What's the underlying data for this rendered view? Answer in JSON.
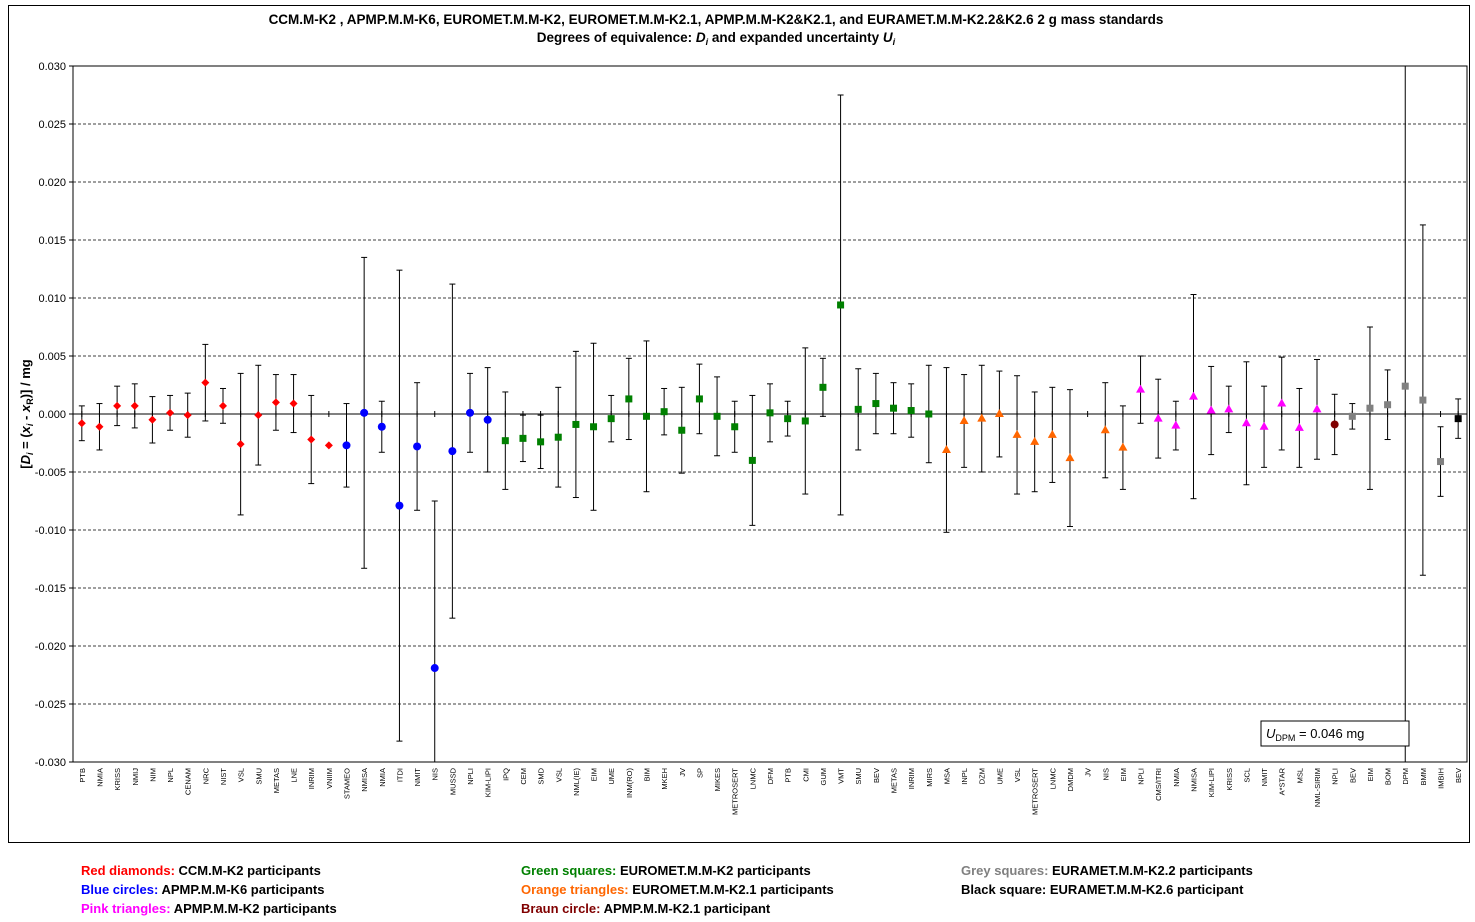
{
  "chart_data": {
    "type": "scatter",
    "title": "CCM.M-K2 , APMP.M.M-K6, EUROMET.M.M-K2, EUROMET.M.M-K2.1, APMP.M.M-K2&K2.1, and EURAMET.M.M-K2.2&K2.6   2 g mass standards",
    "subtitle_prefix": "Degrees of equivalence: ",
    "subtitle_d": "D",
    "subtitle_d_sub": "i",
    "subtitle_mid": " and expanded uncertainty ",
    "subtitle_u": "U",
    "subtitle_u_sub": "i",
    "ylabel_parts": [
      "[",
      "D",
      "i",
      " = (",
      "x",
      "i",
      " - ",
      "x",
      "R",
      ")] / mg"
    ],
    "ylim": [
      -0.03,
      0.03
    ],
    "yticks": [
      -0.03,
      -0.025,
      -0.02,
      -0.015,
      -0.01,
      -0.005,
      0.0,
      0.005,
      0.01,
      0.015,
      0.02,
      0.025,
      0.03
    ],
    "ytick_labels": [
      "-0.030",
      "-0.025",
      "-0.020",
      "-0.015",
      "-0.010",
      "-0.005",
      "0.000",
      "0.005",
      "0.010",
      "0.015",
      "0.020",
      "0.025",
      "0.030"
    ],
    "grid": "horizontal dashed",
    "note_prefix": "U",
    "note_sub": "DPM",
    "note_value": " = 0.046 mg",
    "colors": {
      "red": "#ff0000",
      "blue": "#0000ff",
      "green": "#008000",
      "orange": "#ff6600",
      "pink": "#ff00ff",
      "brown": "#800000",
      "grey": "#808080",
      "black": "#000000"
    },
    "series": [
      {
        "name": "CCM.M-K2",
        "marker": "diamond",
        "color": "red",
        "labels": [
          "PTB",
          "NMIA",
          "KRISS",
          "NMIJ",
          "NIM",
          "NPL",
          "CENAM",
          "NRC",
          "NIST",
          "VSL",
          "SMU",
          "METAS",
          "LNE",
          "INRIM",
          "VNIIM"
        ],
        "values": [
          -0.0008,
          -0.0011,
          0.0007,
          0.0007,
          -0.0005,
          0.0001,
          -0.0001,
          0.0027,
          0.0007,
          -0.0026,
          -0.0001,
          0.001,
          0.0009,
          -0.0022,
          -0.0027
        ],
        "uncert": [
          0.0015,
          0.002,
          0.0017,
          0.0019,
          0.002,
          0.0015,
          0.0019,
          0.0033,
          0.0015,
          0.0061,
          0.0043,
          0.0024,
          0.0025,
          0.0038,
          null
        ]
      },
      {
        "name": "APMP.M.M-K6",
        "marker": "circle",
        "color": "blue",
        "labels": [
          "STAMEO",
          "NMISA",
          "NMIA",
          "ITDI",
          "NMIT",
          "NIS",
          "MUSSD",
          "NPLI",
          "KIM-LIPI"
        ],
        "values": [
          -0.0027,
          0.0001,
          -0.0011,
          -0.0079,
          -0.0028,
          -0.0219,
          -0.0032,
          0.0001,
          -0.0005
        ],
        "uncert": [
          0.0036,
          0.0134,
          0.0022,
          0.0203,
          0.0055,
          0.0144,
          0.0144,
          0.0034,
          0.0045
        ]
      },
      {
        "name": "EUROMET.M.M-K2",
        "marker": "square",
        "color": "green",
        "labels": [
          "IPQ",
          "CEM",
          "SMD",
          "VSL",
          "NML(IE)",
          "EIM",
          "UME",
          "INM(RO)",
          "BIM",
          "MKEH",
          "JV",
          "SP",
          "MIKES",
          "METROSERT",
          "LNMC",
          "DFM",
          "PTB",
          "CMI",
          "GUM",
          "VMT",
          "SMU",
          "BEV",
          "METAS",
          "INRIM",
          "MIRS"
        ],
        "values": [
          -0.0023,
          -0.0021,
          -0.0024,
          -0.002,
          -0.0009,
          -0.0011,
          -0.0004,
          0.0013,
          -0.0002,
          0.0002,
          -0.0014,
          0.0013,
          -0.0002,
          -0.0011,
          -0.004,
          0.0001,
          -0.0004,
          -0.0006,
          0.0023,
          0.0094,
          0.0004,
          0.0009,
          0.0005,
          0.0003,
          0.0
        ],
        "uncert": [
          0.0042,
          0.002,
          0.0023,
          0.0043,
          0.0063,
          0.0072,
          0.002,
          0.0035,
          0.0065,
          0.002,
          0.0037,
          0.003,
          0.0034,
          0.0022,
          0.0056,
          0.0025,
          0.0015,
          0.0063,
          0.0025,
          0.0181,
          0.0035,
          0.0026,
          0.0022,
          0.0023,
          0.0042
        ]
      },
      {
        "name": "EUROMET.M.M-K2.1",
        "marker": "triangle",
        "color": "orange",
        "labels": [
          "MSA",
          "INPL",
          "DZM",
          "UME",
          "VSL",
          "METROSERT",
          "LNMC",
          "DMDM",
          "JV",
          "NIS",
          "EIM"
        ],
        "values": [
          -0.0031,
          -0.0006,
          -0.0004,
          0.0,
          -0.0018,
          -0.0024,
          -0.0018,
          -0.0038,
          null,
          -0.0014,
          -0.0029
        ],
        "uncert": [
          0.0071,
          0.004,
          0.0046,
          0.0037,
          0.0051,
          0.0043,
          0.0041,
          0.0059,
          null,
          0.0041,
          0.0036
        ]
      },
      {
        "name": "APMP.M.M-K2",
        "marker": "triangle",
        "color": "pink",
        "labels": [
          "NPLI",
          "CMS/ITRI",
          "NMIA",
          "NMISA",
          "KIM-LIPI",
          "KRISS",
          "SCL",
          "NMIT",
          "A*STAR",
          "MSL",
          "NML-SIRIM"
        ],
        "values": [
          0.0021,
          -0.0004,
          -0.001,
          0.0015,
          0.0003,
          0.0004,
          -0.0008,
          -0.0011,
          0.0009,
          -0.0012,
          0.0004
        ],
        "uncert": [
          0.0029,
          0.0034,
          0.0021,
          0.0088,
          0.0038,
          0.002,
          0.0053,
          0.0035,
          0.004,
          0.0034,
          0.0043
        ]
      },
      {
        "name": "APMP.M.M-K2.1",
        "marker": "circle",
        "color": "brown",
        "labels": [
          "NPLI"
        ],
        "values": [
          -0.0009
        ],
        "uncert": [
          0.0026
        ]
      },
      {
        "name": "EURAMET.M.M-K2.2",
        "marker": "square",
        "color": "grey",
        "labels": [
          "BEV",
          "EIM",
          "BOM",
          "DPM",
          "BMM",
          "IMBIH"
        ],
        "values": [
          -0.0002,
          0.0005,
          0.0008,
          0.0024,
          0.0012,
          -0.0041
        ],
        "uncert": [
          0.0011,
          0.007,
          0.003,
          0.046,
          0.0151,
          0.003
        ]
      },
      {
        "name": "EURAMET.M.M-K2.6",
        "marker": "square",
        "color": "black",
        "labels": [
          "BEV"
        ],
        "values": [
          -0.0004
        ],
        "uncert": [
          0.0017
        ]
      }
    ],
    "legend": [
      {
        "key": "Red diamonds:",
        "text": " CCM.M-K2 participants",
        "color": "red"
      },
      {
        "key": "Blue circles:",
        "text": " APMP.M.M-K6 participants",
        "color": "blue"
      },
      {
        "key": "Pink triangles:",
        "text": " APMP.M.M-K2 participants",
        "color": "pink"
      },
      {
        "key": "Green squares:",
        "text": " EUROMET.M.M-K2 participants",
        "color": "green"
      },
      {
        "key": "Orange triangles:",
        "text": " EUROMET.M.M-K2.1 participants",
        "color": "orange"
      },
      {
        "key": "Braun circle:",
        "text": " APMP.M.M-K2.1 participant",
        "color": "brown"
      },
      {
        "key": "Grey squares:",
        "text": " EURAMET.M.M-K2.2 participants",
        "color": "grey"
      },
      {
        "key": "Black square:",
        "text": " EURAMET.M.M-K2.6 participant",
        "color": "black"
      }
    ]
  }
}
